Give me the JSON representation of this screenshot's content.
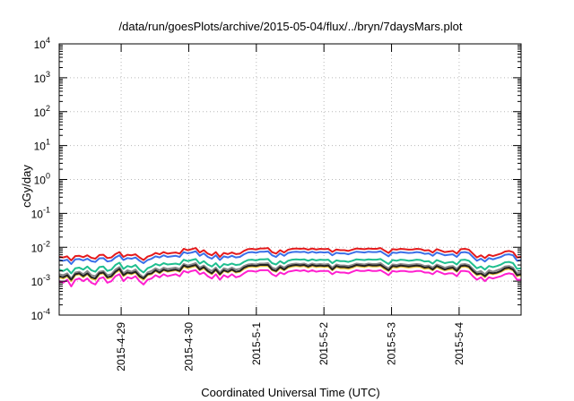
{
  "chart_data": {
    "type": "line",
    "title": "/data/run/goesPlots/archive/2015-05-04/flux/../bryn/7daysMars.plot",
    "xlabel": "Coordinated Universal Time (UTC)",
    "ylabel": "cGy/day",
    "y_scale": "log",
    "ylim_exponents": [
      -4,
      4
    ],
    "y_ticks": [
      {
        "base": "10",
        "exp": "-4"
      },
      {
        "base": "10",
        "exp": "-3"
      },
      {
        "base": "10",
        "exp": "-2"
      },
      {
        "base": "10",
        "exp": "-1"
      },
      {
        "base": "10",
        "exp": "0"
      },
      {
        "base": "10",
        "exp": "1"
      },
      {
        "base": "10",
        "exp": "2"
      },
      {
        "base": "10",
        "exp": "3"
      },
      {
        "base": "10",
        "exp": "4"
      }
    ],
    "x_range": [
      "2015-04-28 02:00",
      "2015-05-04 22:00"
    ],
    "x_tick_labels": [
      "2015-4-29",
      "2015-4-30",
      "2015-5-1",
      "2015-5-2",
      "2015-5-3",
      "2015-5-4"
    ],
    "grid": true,
    "legend": "none",
    "colors": {
      "red": "#e41a1c",
      "blue": "#3a6fe8",
      "teal": "#1fbf8f",
      "gray": "#888888",
      "yellow": "#e6c13a",
      "black": "#222222",
      "magenta": "#ff1fcf",
      "grid": "#b8b8b8"
    },
    "series": [
      {
        "color": "red",
        "values": [
          0.0052,
          0.005,
          0.0054,
          0.0041,
          0.0055,
          0.0056,
          0.0051,
          0.0058,
          0.0049,
          0.0046,
          0.0059,
          0.006,
          0.0048,
          0.005,
          0.0063,
          0.0072,
          0.0052,
          0.006,
          0.0058,
          0.0062,
          0.005,
          0.0042,
          0.0053,
          0.0058,
          0.0068,
          0.0062,
          0.0072,
          0.0065,
          0.0068,
          0.007,
          0.0065,
          0.009,
          0.0082,
          0.0088,
          0.0095,
          0.007,
          0.0082,
          0.0065,
          0.0058,
          0.0072,
          0.0052,
          0.0068,
          0.0063,
          0.007,
          0.0063,
          0.0065,
          0.0078,
          0.0088,
          0.009,
          0.0086,
          0.0092,
          0.0092,
          0.0095,
          0.0072,
          0.0065,
          0.0082,
          0.007,
          0.0085,
          0.009,
          0.0092,
          0.009,
          0.0092,
          0.0085,
          0.0092,
          0.0086,
          0.009,
          0.0088,
          0.009,
          0.0073,
          0.0086,
          0.0082,
          0.0082,
          0.0078,
          0.0085,
          0.0092,
          0.009,
          0.0088,
          0.0092,
          0.009,
          0.009,
          0.0095,
          0.008,
          0.0068,
          0.0088,
          0.0085,
          0.009,
          0.0088,
          0.0085,
          0.0086,
          0.009,
          0.0088,
          0.008,
          0.0082,
          0.007,
          0.0088,
          0.008,
          0.0072,
          0.0075,
          0.0078,
          0.0065,
          0.0088,
          0.009,
          0.0085,
          0.0065,
          0.005,
          0.0058,
          0.0048,
          0.006,
          0.0055,
          0.006,
          0.0065,
          0.0075,
          0.0078,
          0.0072,
          0.005,
          0.0052
        ]
      },
      {
        "color": "blue",
        "values": [
          0.0042,
          0.004,
          0.0043,
          0.0032,
          0.0044,
          0.0045,
          0.0041,
          0.0046,
          0.0039,
          0.0037,
          0.0047,
          0.0048,
          0.0038,
          0.004,
          0.005,
          0.0058,
          0.0042,
          0.0048,
          0.0046,
          0.005,
          0.004,
          0.0034,
          0.0042,
          0.0046,
          0.0054,
          0.005,
          0.0058,
          0.0052,
          0.0054,
          0.0056,
          0.0052,
          0.0072,
          0.0066,
          0.007,
          0.0076,
          0.0056,
          0.0066,
          0.0052,
          0.0046,
          0.0058,
          0.0042,
          0.0054,
          0.005,
          0.0056,
          0.005,
          0.0052,
          0.0062,
          0.007,
          0.0072,
          0.0069,
          0.0074,
          0.0074,
          0.0076,
          0.0058,
          0.0052,
          0.0066,
          0.0056,
          0.0068,
          0.0072,
          0.0074,
          0.0072,
          0.0074,
          0.0068,
          0.0074,
          0.0069,
          0.0072,
          0.007,
          0.0072,
          0.0058,
          0.0069,
          0.0066,
          0.0066,
          0.0062,
          0.0068,
          0.0074,
          0.0072,
          0.007,
          0.0074,
          0.0072,
          0.0072,
          0.0076,
          0.0064,
          0.0054,
          0.007,
          0.0068,
          0.0072,
          0.007,
          0.0068,
          0.0069,
          0.0072,
          0.007,
          0.0064,
          0.0066,
          0.0056,
          0.007,
          0.0064,
          0.0058,
          0.006,
          0.0062,
          0.0052,
          0.007,
          0.0072,
          0.0068,
          0.0052,
          0.004,
          0.0046,
          0.0038,
          0.0048,
          0.0044,
          0.0048,
          0.0052,
          0.006,
          0.0062,
          0.0058,
          0.004,
          0.0042
        ]
      },
      {
        "color": "teal",
        "values": [
          0.0022,
          0.002,
          0.0023,
          0.0017,
          0.0024,
          0.0025,
          0.0022,
          0.0027,
          0.0021,
          0.0019,
          0.0026,
          0.0027,
          0.002,
          0.0022,
          0.003,
          0.0035,
          0.0023,
          0.0028,
          0.0026,
          0.003,
          0.0022,
          0.0018,
          0.0024,
          0.0027,
          0.0032,
          0.0029,
          0.0034,
          0.0031,
          0.0032,
          0.0033,
          0.0031,
          0.0043,
          0.0039,
          0.0042,
          0.0045,
          0.0033,
          0.0039,
          0.0031,
          0.0027,
          0.0034,
          0.0025,
          0.0032,
          0.003,
          0.0033,
          0.003,
          0.0031,
          0.0037,
          0.0042,
          0.0043,
          0.0041,
          0.0044,
          0.0044,
          0.0045,
          0.0034,
          0.0031,
          0.0039,
          0.0033,
          0.004,
          0.0043,
          0.0044,
          0.0043,
          0.0044,
          0.004,
          0.0044,
          0.0041,
          0.0043,
          0.0042,
          0.0043,
          0.0034,
          0.0041,
          0.0039,
          0.0039,
          0.0037,
          0.004,
          0.0044,
          0.0043,
          0.0042,
          0.0044,
          0.0043,
          0.0043,
          0.0045,
          0.0038,
          0.0032,
          0.0042,
          0.004,
          0.0043,
          0.0042,
          0.004,
          0.0041,
          0.0043,
          0.0042,
          0.0038,
          0.0039,
          0.0033,
          0.0042,
          0.0038,
          0.0034,
          0.0036,
          0.0037,
          0.0031,
          0.0042,
          0.0043,
          0.004,
          0.0031,
          0.0024,
          0.0027,
          0.0022,
          0.0028,
          0.0026,
          0.0028,
          0.0031,
          0.0036,
          0.0037,
          0.0034,
          0.0023,
          0.0024
        ]
      },
      {
        "color": "gray",
        "values": [
          0.0016,
          0.0015,
          0.0017,
          0.0012,
          0.0018,
          0.0019,
          0.0016,
          0.002,
          0.0015,
          0.0014,
          0.0019,
          0.002,
          0.0015,
          0.0016,
          0.0022,
          0.0026,
          0.0017,
          0.0021,
          0.0019,
          0.0022,
          0.0016,
          0.0013,
          0.0018,
          0.002,
          0.0024,
          0.0021,
          0.0025,
          0.0023,
          0.0024,
          0.0025,
          0.0023,
          0.0032,
          0.0029,
          0.0031,
          0.0034,
          0.0025,
          0.0029,
          0.0023,
          0.002,
          0.0025,
          0.0018,
          0.0024,
          0.0022,
          0.0025,
          0.0022,
          0.0023,
          0.0028,
          0.0031,
          0.0032,
          0.0031,
          0.0033,
          0.0033,
          0.0034,
          0.0025,
          0.0023,
          0.0029,
          0.0025,
          0.003,
          0.0032,
          0.0033,
          0.0032,
          0.0033,
          0.003,
          0.0033,
          0.0031,
          0.0032,
          0.0031,
          0.0032,
          0.0025,
          0.0031,
          0.0029,
          0.0029,
          0.0028,
          0.003,
          0.0033,
          0.0032,
          0.0031,
          0.0033,
          0.0032,
          0.0032,
          0.0034,
          0.0028,
          0.0024,
          0.0031,
          0.003,
          0.0032,
          0.0031,
          0.003,
          0.0031,
          0.0032,
          0.0031,
          0.0028,
          0.0029,
          0.0025,
          0.0031,
          0.0028,
          0.0025,
          0.0027,
          0.0028,
          0.0023,
          0.0031,
          0.0032,
          0.003,
          0.0023,
          0.0018,
          0.002,
          0.0016,
          0.0021,
          0.0019,
          0.0021,
          0.0023,
          0.0027,
          0.0028,
          0.0025,
          0.0017,
          0.0018
        ]
      },
      {
        "color": "yellow",
        "values": [
          0.0013,
          0.0012,
          0.0014,
          0.001,
          0.0015,
          0.0016,
          0.0013,
          0.0016,
          0.0012,
          0.0011,
          0.0016,
          0.0017,
          0.0012,
          0.0013,
          0.0018,
          0.0021,
          0.0014,
          0.0017,
          0.0016,
          0.0018,
          0.0013,
          0.0011,
          0.0015,
          0.0016,
          0.002,
          0.0017,
          0.0021,
          0.0019,
          0.002,
          0.0021,
          0.0019,
          0.0027,
          0.0024,
          0.0026,
          0.0028,
          0.0021,
          0.0024,
          0.0019,
          0.0016,
          0.0021,
          0.0015,
          0.002,
          0.0018,
          0.0021,
          0.0018,
          0.0019,
          0.0023,
          0.0026,
          0.0027,
          0.0026,
          0.0028,
          0.0028,
          0.0028,
          0.0021,
          0.0019,
          0.0024,
          0.0021,
          0.0025,
          0.0027,
          0.0028,
          0.0027,
          0.0028,
          0.0025,
          0.0028,
          0.0026,
          0.0027,
          0.0026,
          0.0027,
          0.0021,
          0.0026,
          0.0024,
          0.0024,
          0.0023,
          0.0025,
          0.0028,
          0.0027,
          0.0026,
          0.0028,
          0.0027,
          0.0027,
          0.0028,
          0.0023,
          0.002,
          0.0026,
          0.0025,
          0.0027,
          0.0026,
          0.0025,
          0.0026,
          0.0027,
          0.0026,
          0.0023,
          0.0024,
          0.0021,
          0.0026,
          0.0023,
          0.0021,
          0.0022,
          0.0023,
          0.0019,
          0.0026,
          0.0027,
          0.0025,
          0.0019,
          0.0015,
          0.0016,
          0.0013,
          0.0017,
          0.0016,
          0.0017,
          0.0019,
          0.0022,
          0.0023,
          0.0021,
          0.0014,
          0.0015
        ]
      },
      {
        "color": "black",
        "values": [
          0.0014,
          0.0013,
          0.0015,
          0.0011,
          0.0016,
          0.0017,
          0.0014,
          0.0017,
          0.0013,
          0.0012,
          0.0017,
          0.0018,
          0.0013,
          0.0014,
          0.0019,
          0.0023,
          0.0015,
          0.0018,
          0.0017,
          0.0019,
          0.0014,
          0.0012,
          0.0016,
          0.0017,
          0.0021,
          0.0018,
          0.0022,
          0.002,
          0.0021,
          0.0022,
          0.002,
          0.0029,
          0.0026,
          0.0028,
          0.003,
          0.0022,
          0.0026,
          0.002,
          0.0017,
          0.0022,
          0.0016,
          0.0021,
          0.0019,
          0.0022,
          0.0019,
          0.002,
          0.0025,
          0.0028,
          0.0029,
          0.0028,
          0.003,
          0.003,
          0.003,
          0.0022,
          0.002,
          0.0026,
          0.0022,
          0.0027,
          0.0029,
          0.003,
          0.0029,
          0.003,
          0.0027,
          0.003,
          0.0028,
          0.0029,
          0.0028,
          0.0029,
          0.0022,
          0.0028,
          0.0026,
          0.0026,
          0.0025,
          0.0027,
          0.003,
          0.0029,
          0.0028,
          0.003,
          0.0029,
          0.0029,
          0.003,
          0.0025,
          0.0021,
          0.0028,
          0.0027,
          0.0029,
          0.0028,
          0.0027,
          0.0028,
          0.0029,
          0.0028,
          0.0025,
          0.0026,
          0.0022,
          0.0028,
          0.0025,
          0.0022,
          0.0024,
          0.0025,
          0.002,
          0.0028,
          0.0029,
          0.0027,
          0.002,
          0.0016,
          0.0017,
          0.0014,
          0.0018,
          0.0017,
          0.0018,
          0.002,
          0.0024,
          0.0025,
          0.0022,
          0.0015,
          0.0016
        ]
      },
      {
        "color": "magenta",
        "values": [
          0.001,
          0.0009,
          0.0011,
          0.0007,
          0.0011,
          0.0012,
          0.001,
          0.0012,
          0.0009,
          0.0008,
          0.0012,
          0.0013,
          0.0009,
          0.001,
          0.0014,
          0.0016,
          0.001,
          0.0013,
          0.0012,
          0.0014,
          0.001,
          0.0008,
          0.0011,
          0.0012,
          0.0015,
          0.0013,
          0.0016,
          0.0014,
          0.0015,
          0.0016,
          0.0014,
          0.002,
          0.0018,
          0.002,
          0.0021,
          0.0016,
          0.0018,
          0.0014,
          0.0012,
          0.0016,
          0.0011,
          0.0015,
          0.0013,
          0.0016,
          0.0013,
          0.0014,
          0.0017,
          0.002,
          0.002,
          0.0019,
          0.0021,
          0.0021,
          0.0021,
          0.0016,
          0.0014,
          0.0018,
          0.0016,
          0.0019,
          0.002,
          0.0021,
          0.002,
          0.0021,
          0.0019,
          0.0021,
          0.0019,
          0.002,
          0.002,
          0.002,
          0.0016,
          0.0019,
          0.0018,
          0.0018,
          0.0017,
          0.0019,
          0.0021,
          0.002,
          0.002,
          0.0021,
          0.002,
          0.002,
          0.0021,
          0.0018,
          0.0015,
          0.002,
          0.0019,
          0.002,
          0.002,
          0.0019,
          0.0019,
          0.002,
          0.002,
          0.0018,
          0.0018,
          0.0016,
          0.002,
          0.0018,
          0.0016,
          0.0017,
          0.0017,
          0.0014,
          0.002,
          0.002,
          0.0019,
          0.0014,
          0.0011,
          0.0013,
          0.001,
          0.0013,
          0.0012,
          0.0013,
          0.0014,
          0.0016,
          0.0017,
          0.0016,
          0.0011,
          0.0011
        ]
      }
    ]
  }
}
